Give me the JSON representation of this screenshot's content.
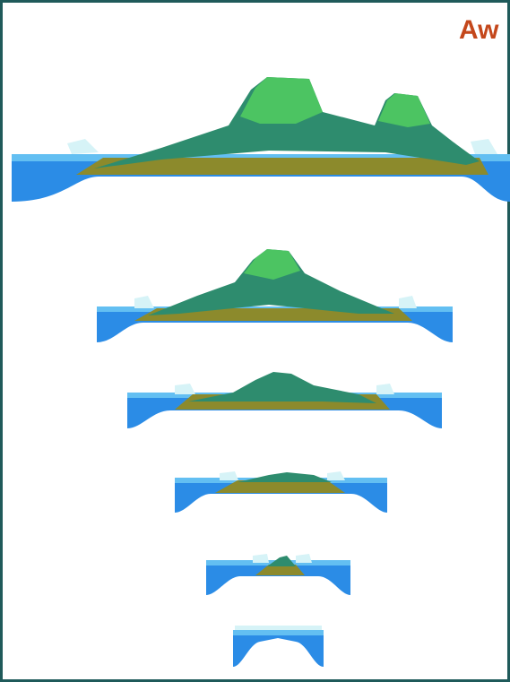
{
  "header": {
    "text": "Aw"
  }
}
